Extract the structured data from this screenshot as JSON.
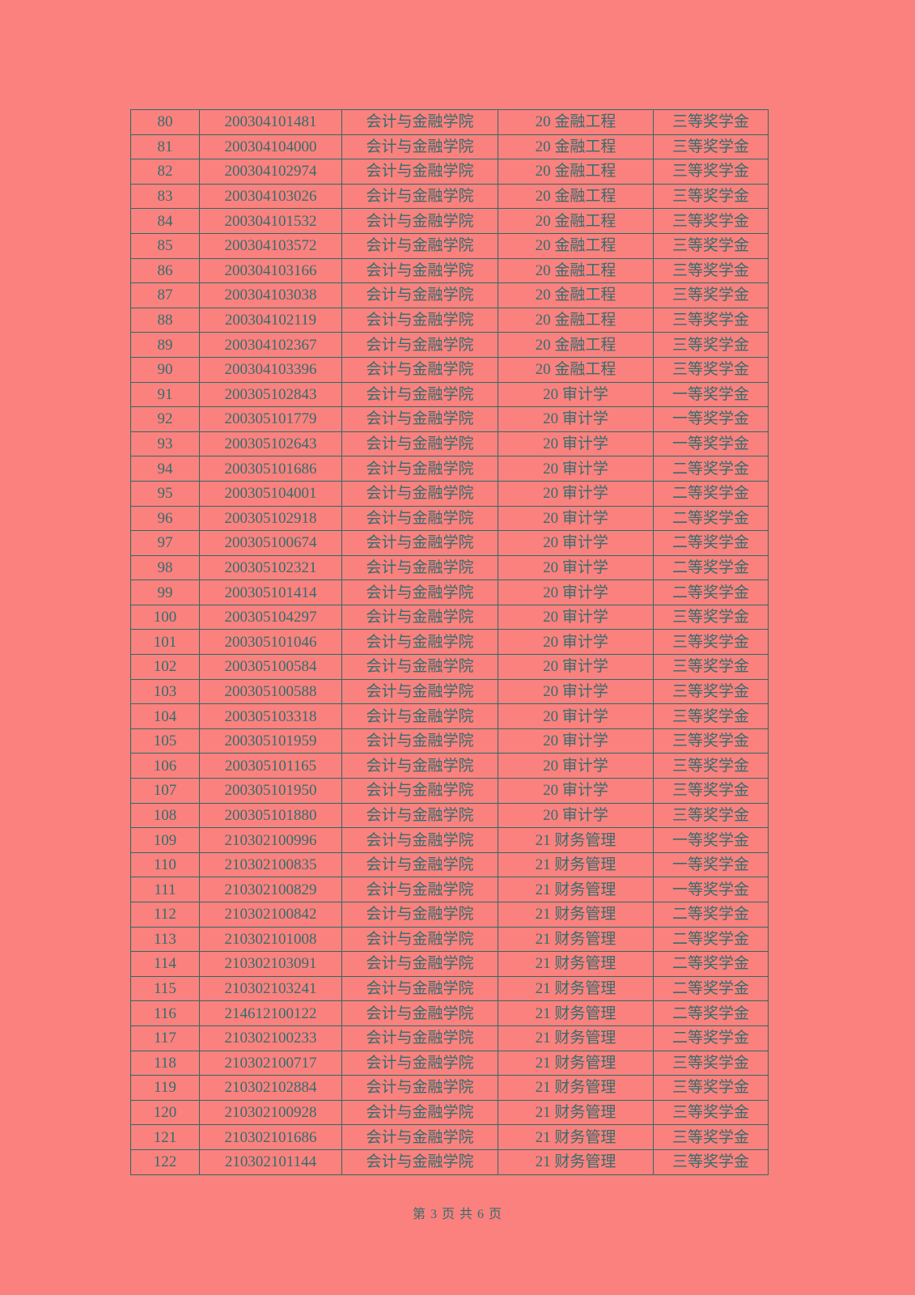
{
  "colors": {
    "page_background": "#fa817e",
    "text": "#346e6d",
    "table_border": "#2f6b66"
  },
  "footer": {
    "text": "第 3 页 共 6 页"
  },
  "table": {
    "rows": [
      {
        "no": "80",
        "id": "200304101481",
        "college": "会计与金融学院",
        "major": "20 金融工程",
        "award": "三等奖学金"
      },
      {
        "no": "81",
        "id": "200304104000",
        "college": "会计与金融学院",
        "major": "20 金融工程",
        "award": "三等奖学金"
      },
      {
        "no": "82",
        "id": "200304102974",
        "college": "会计与金融学院",
        "major": "20 金融工程",
        "award": "三等奖学金"
      },
      {
        "no": "83",
        "id": "200304103026",
        "college": "会计与金融学院",
        "major": "20 金融工程",
        "award": "三等奖学金"
      },
      {
        "no": "84",
        "id": "200304101532",
        "college": "会计与金融学院",
        "major": "20 金融工程",
        "award": "三等奖学金"
      },
      {
        "no": "85",
        "id": "200304103572",
        "college": "会计与金融学院",
        "major": "20 金融工程",
        "award": "三等奖学金"
      },
      {
        "no": "86",
        "id": "200304103166",
        "college": "会计与金融学院",
        "major": "20 金融工程",
        "award": "三等奖学金"
      },
      {
        "no": "87",
        "id": "200304103038",
        "college": "会计与金融学院",
        "major": "20 金融工程",
        "award": "三等奖学金"
      },
      {
        "no": "88",
        "id": "200304102119",
        "college": "会计与金融学院",
        "major": "20 金融工程",
        "award": "三等奖学金"
      },
      {
        "no": "89",
        "id": "200304102367",
        "college": "会计与金融学院",
        "major": "20 金融工程",
        "award": "三等奖学金"
      },
      {
        "no": "90",
        "id": "200304103396",
        "college": "会计与金融学院",
        "major": "20 金融工程",
        "award": "三等奖学金"
      },
      {
        "no": "91",
        "id": "200305102843",
        "college": "会计与金融学院",
        "major": "20 审计学",
        "award": "一等奖学金"
      },
      {
        "no": "92",
        "id": "200305101779",
        "college": "会计与金融学院",
        "major": "20 审计学",
        "award": "一等奖学金"
      },
      {
        "no": "93",
        "id": "200305102643",
        "college": "会计与金融学院",
        "major": "20 审计学",
        "award": "一等奖学金"
      },
      {
        "no": "94",
        "id": "200305101686",
        "college": "会计与金融学院",
        "major": "20 审计学",
        "award": "二等奖学金"
      },
      {
        "no": "95",
        "id": "200305104001",
        "college": "会计与金融学院",
        "major": "20 审计学",
        "award": "二等奖学金"
      },
      {
        "no": "96",
        "id": "200305102918",
        "college": "会计与金融学院",
        "major": "20 审计学",
        "award": "二等奖学金"
      },
      {
        "no": "97",
        "id": "200305100674",
        "college": "会计与金融学院",
        "major": "20 审计学",
        "award": "二等奖学金"
      },
      {
        "no": "98",
        "id": "200305102321",
        "college": "会计与金融学院",
        "major": "20 审计学",
        "award": "二等奖学金"
      },
      {
        "no": "99",
        "id": "200305101414",
        "college": "会计与金融学院",
        "major": "20 审计学",
        "award": "二等奖学金"
      },
      {
        "no": "100",
        "id": "200305104297",
        "college": "会计与金融学院",
        "major": "20 审计学",
        "award": "三等奖学金"
      },
      {
        "no": "101",
        "id": "200305101046",
        "college": "会计与金融学院",
        "major": "20 审计学",
        "award": "三等奖学金"
      },
      {
        "no": "102",
        "id": "200305100584",
        "college": "会计与金融学院",
        "major": "20 审计学",
        "award": "三等奖学金"
      },
      {
        "no": "103",
        "id": "200305100588",
        "college": "会计与金融学院",
        "major": "20 审计学",
        "award": "三等奖学金"
      },
      {
        "no": "104",
        "id": "200305103318",
        "college": "会计与金融学院",
        "major": "20 审计学",
        "award": "三等奖学金"
      },
      {
        "no": "105",
        "id": "200305101959",
        "college": "会计与金融学院",
        "major": "20 审计学",
        "award": "三等奖学金"
      },
      {
        "no": "106",
        "id": "200305101165",
        "college": "会计与金融学院",
        "major": "20 审计学",
        "award": "三等奖学金"
      },
      {
        "no": "107",
        "id": "200305101950",
        "college": "会计与金融学院",
        "major": "20 审计学",
        "award": "三等奖学金"
      },
      {
        "no": "108",
        "id": "200305101880",
        "college": "会计与金融学院",
        "major": "20 审计学",
        "award": "三等奖学金"
      },
      {
        "no": "109",
        "id": "210302100996",
        "college": "会计与金融学院",
        "major": "21 财务管理",
        "award": "一等奖学金"
      },
      {
        "no": "110",
        "id": "210302100835",
        "college": "会计与金融学院",
        "major": "21 财务管理",
        "award": "一等奖学金"
      },
      {
        "no": "111",
        "id": "210302100829",
        "college": "会计与金融学院",
        "major": "21 财务管理",
        "award": "一等奖学金"
      },
      {
        "no": "112",
        "id": "210302100842",
        "college": "会计与金融学院",
        "major": "21 财务管理",
        "award": "二等奖学金"
      },
      {
        "no": "113",
        "id": "210302101008",
        "college": "会计与金融学院",
        "major": "21 财务管理",
        "award": "二等奖学金"
      },
      {
        "no": "114",
        "id": "210302103091",
        "college": "会计与金融学院",
        "major": "21 财务管理",
        "award": "二等奖学金"
      },
      {
        "no": "115",
        "id": "210302103241",
        "college": "会计与金融学院",
        "major": "21 财务管理",
        "award": "二等奖学金"
      },
      {
        "no": "116",
        "id": "214612100122",
        "college": "会计与金融学院",
        "major": "21 财务管理",
        "award": "二等奖学金"
      },
      {
        "no": "117",
        "id": "210302100233",
        "college": "会计与金融学院",
        "major": "21 财务管理",
        "award": "二等奖学金"
      },
      {
        "no": "118",
        "id": "210302100717",
        "college": "会计与金融学院",
        "major": "21 财务管理",
        "award": "三等奖学金"
      },
      {
        "no": "119",
        "id": "210302102884",
        "college": "会计与金融学院",
        "major": "21 财务管理",
        "award": "三等奖学金"
      },
      {
        "no": "120",
        "id": "210302100928",
        "college": "会计与金融学院",
        "major": "21 财务管理",
        "award": "三等奖学金"
      },
      {
        "no": "121",
        "id": "210302101686",
        "college": "会计与金融学院",
        "major": "21 财务管理",
        "award": "三等奖学金"
      },
      {
        "no": "122",
        "id": "210302101144",
        "college": "会计与金融学院",
        "major": "21 财务管理",
        "award": "三等奖学金"
      }
    ]
  }
}
